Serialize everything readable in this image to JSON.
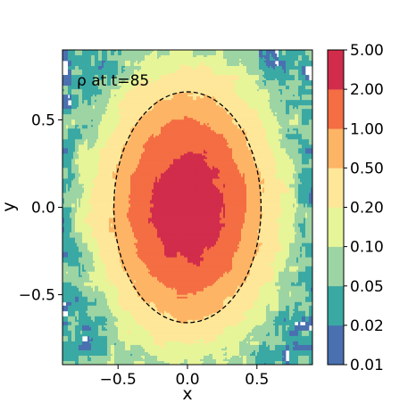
{
  "chart_data": {
    "type": "heatmap",
    "title": "ρ at t=85",
    "xlabel": "x",
    "ylabel": "y",
    "xlim": [
      -0.9,
      0.9
    ],
    "ylim": [
      -0.9,
      0.9
    ],
    "xticks": [
      -0.5,
      0.0,
      0.5
    ],
    "xtick_labels": [
      "−0.5",
      "0.0",
      "0.5"
    ],
    "yticks": [
      -0.5,
      0.0,
      0.5
    ],
    "ytick_labels": [
      "−0.5",
      "0.0",
      "0.5"
    ],
    "colorbar": {
      "scale": "log",
      "levels": [
        0.01,
        0.02,
        0.05,
        0.1,
        0.2,
        0.5,
        1.0,
        2.0,
        5.0
      ],
      "tick_labels": [
        "0.01",
        "0.02",
        "0.05",
        "0.10",
        "0.20",
        "0.50",
        "1.00",
        "2.00",
        "5.00"
      ],
      "colors": [
        "#4a70b0",
        "#3aa9a4",
        "#9dd4a3",
        "#e6f598",
        "#fee799",
        "#fdb465",
        "#f46d43",
        "#d12c4b"
      ]
    },
    "field": {
      "center": [
        0.0,
        0.0
      ],
      "peak_density": 3.0,
      "radius_x": 0.5,
      "radius_y": 0.6,
      "background_noise_level": 0.05
    },
    "annotation": {
      "shape": "ellipse",
      "style": "dashed",
      "color": "#000000",
      "center": [
        0.0,
        0.0
      ],
      "semi_axis_x": 0.53,
      "semi_axis_y": 0.66
    },
    "grid": false
  }
}
